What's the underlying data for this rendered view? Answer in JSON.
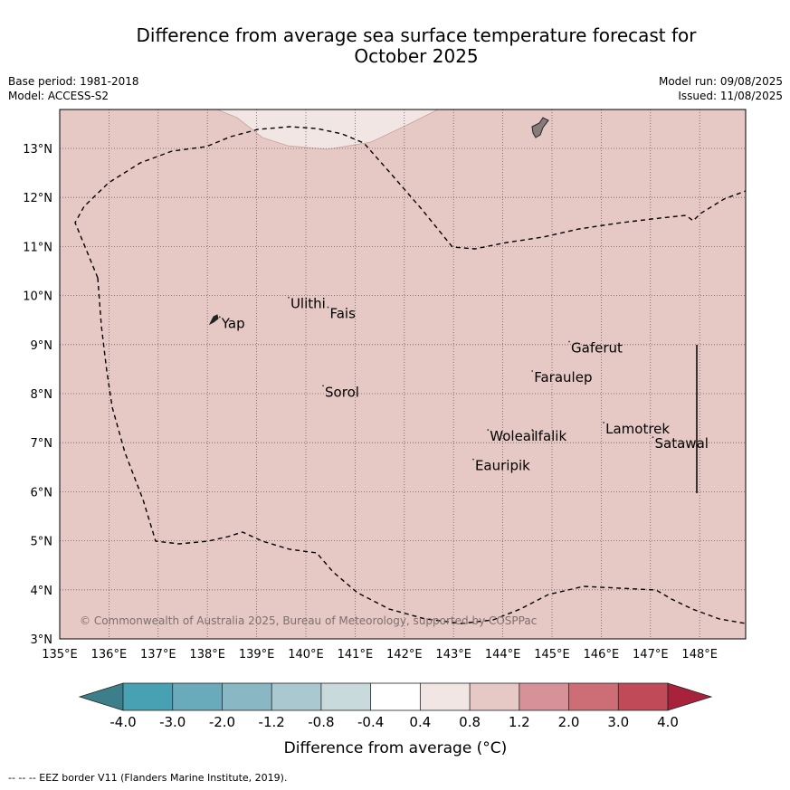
{
  "title_line1": "Difference from average sea surface temperature forecast for",
  "title_line2": "October 2025",
  "meta_left": {
    "base_period": "Base period: 1981-2018",
    "model": "Model: ACCESS-S2"
  },
  "meta_right": {
    "model_run": "Model run: 09/08/2025",
    "issued": "Issued: 11/08/2025"
  },
  "map": {
    "lon_labels": [
      "135°E",
      "136°E",
      "137°E",
      "138°E",
      "139°E",
      "140°E",
      "141°E",
      "142°E",
      "143°E",
      "144°E",
      "145°E",
      "146°E",
      "147°E",
      "148°E"
    ],
    "lat_labels": [
      "13°N",
      "12°N",
      "11°N",
      "10°N",
      "9°N",
      "8°N",
      "7°N",
      "6°N",
      "5°N",
      "4°N",
      "3°N"
    ],
    "places": [
      {
        "name": "Yap",
        "lon": 138.25,
        "lat": 9.45
      },
      {
        "name": "Ulithi",
        "lon": 139.65,
        "lat": 9.85
      },
      {
        "name": "Fais",
        "lon": 140.45,
        "lat": 9.65
      },
      {
        "name": "Sorol",
        "lon": 140.35,
        "lat": 8.05
      },
      {
        "name": "Gaferut",
        "lon": 145.35,
        "lat": 8.95
      },
      {
        "name": "Faraulep",
        "lon": 144.6,
        "lat": 8.35
      },
      {
        "name": "Woleai",
        "lon": 143.7,
        "lat": 7.15
      },
      {
        "name": "Ifalik",
        "lon": 144.6,
        "lat": 7.15
      },
      {
        "name": "Lamotrek",
        "lon": 146.05,
        "lat": 7.3
      },
      {
        "name": "Satawal",
        "lon": 147.05,
        "lat": 7.0
      },
      {
        "name": "Eauripik",
        "lon": 143.4,
        "lat": 6.55
      }
    ],
    "copyright": "© Commonwealth of Australia 2025, Bureau of Meteorology, supported by COSPPac",
    "anomaly_fill_color": "#e6c8c4",
    "anomaly_patch_color": "#f2e6e4"
  },
  "colorbar": {
    "label": "Difference from average (°C)",
    "tick_labels": [
      "-4.0",
      "-3.0",
      "-2.0",
      "-1.2",
      "-0.8",
      "-0.4",
      "0.4",
      "0.8",
      "1.2",
      "2.0",
      "3.0",
      "4.0"
    ],
    "colors": [
      "#3c7e89",
      "#47a1b3",
      "#6aabbb",
      "#8ab7c4",
      "#a9c8cf",
      "#c9dadd",
      "#ffffff",
      "#f2e6e4",
      "#e6c8c4",
      "#d69298",
      "#cd6e77",
      "#c04a58",
      "#a8223c"
    ]
  },
  "footnote": "--  --  -- EEZ border V11 (Flanders Marine Institute, 2019)."
}
